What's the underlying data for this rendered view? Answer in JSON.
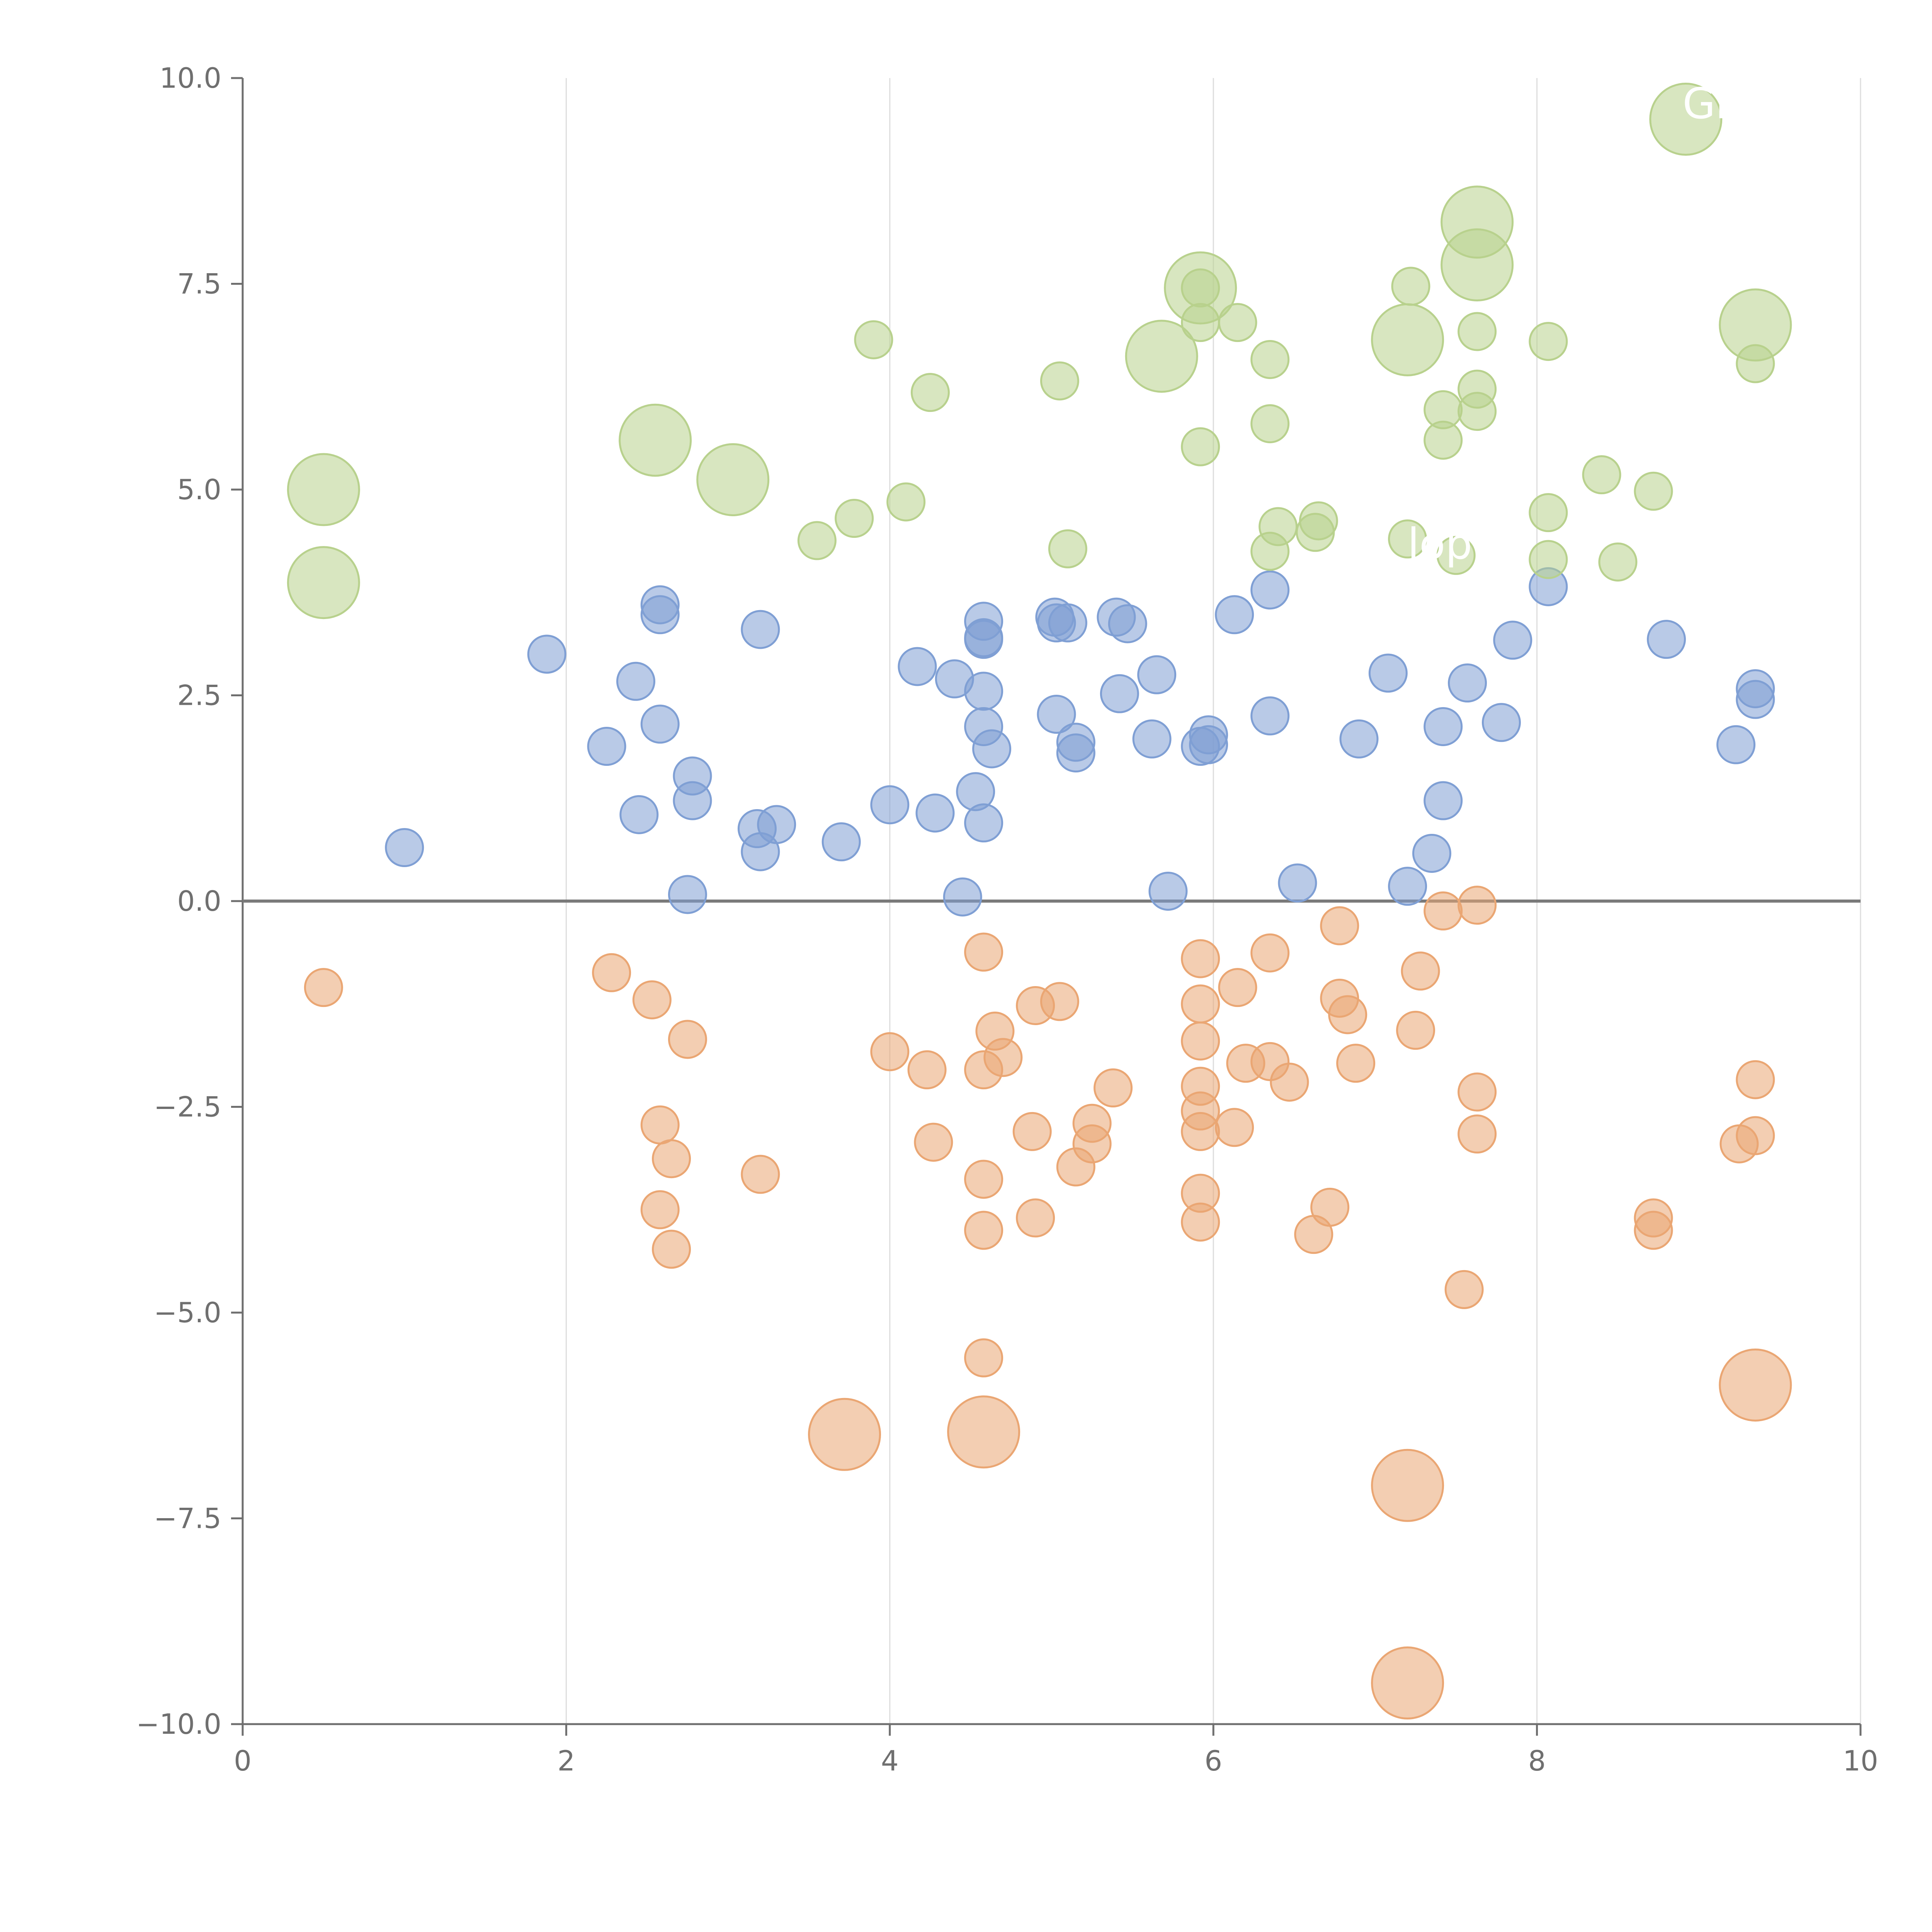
{
  "colors": {
    "blue": "#7f9fd4",
    "orange": "#eaa673",
    "green": "#b8d18d",
    "axis": "#6f6f6f",
    "grid": "#dddddd"
  },
  "chart_data": {
    "type": "scatter",
    "title": "",
    "xlabel": "",
    "ylabel": "",
    "xlim": [
      0,
      10
    ],
    "ylim": [
      -10,
      10
    ],
    "grid": "vertical",
    "x_ticks": [
      0,
      2,
      4,
      6,
      8,
      10
    ],
    "x_tick_labels": [
      "0",
      "2",
      "4",
      "6",
      "8",
      "10"
    ],
    "y_ticks": [
      10,
      7.5,
      5,
      2.5,
      0,
      -2.5,
      -5,
      -7.5,
      -10
    ],
    "y_tick_labels": [
      "10.0",
      "7.5",
      "5.0",
      "2.5",
      "0.0",
      "−2.5",
      "−5.0",
      "−7.5",
      "−10.0"
    ],
    "annotations": [
      {
        "text": "Gr",
        "x": 8.9,
        "y": 9.7
      },
      {
        "text": "lop",
        "x": 7.2,
        "y": 4.35
      }
    ],
    "series": [
      {
        "name": "blue",
        "color_key": "blue",
        "size": 1,
        "points": [
          [
            1.0,
            0.65
          ],
          [
            1.88,
            3.0
          ],
          [
            2.25,
            1.88
          ],
          [
            2.43,
            2.67
          ],
          [
            2.45,
            1.05
          ],
          [
            2.58,
            3.6
          ],
          [
            2.58,
            3.48
          ],
          [
            2.58,
            2.15
          ],
          [
            2.78,
            1.52
          ],
          [
            2.78,
            1.22
          ],
          [
            2.75,
            0.08
          ],
          [
            3.2,
            3.3
          ],
          [
            3.18,
            0.88
          ],
          [
            3.2,
            0.6
          ],
          [
            3.3,
            0.93
          ],
          [
            3.7,
            0.72
          ],
          [
            4.0,
            1.17
          ],
          [
            4.17,
            2.85
          ],
          [
            4.28,
            1.07
          ],
          [
            4.4,
            2.7
          ],
          [
            4.45,
            0.05
          ],
          [
            4.53,
            1.33
          ],
          [
            4.58,
            3.4
          ],
          [
            4.58,
            3.2
          ],
          [
            4.58,
            3.18
          ],
          [
            4.58,
            2.55
          ],
          [
            4.58,
            2.12
          ],
          [
            4.58,
            0.95
          ],
          [
            4.63,
            1.85
          ],
          [
            5.02,
            3.45
          ],
          [
            5.03,
            3.38
          ],
          [
            5.1,
            3.38
          ],
          [
            5.03,
            2.27
          ],
          [
            5.15,
            1.93
          ],
          [
            5.15,
            1.8
          ],
          [
            5.4,
            3.45
          ],
          [
            5.47,
            3.37
          ],
          [
            5.42,
            2.52
          ],
          [
            5.65,
            2.75
          ],
          [
            5.62,
            1.97
          ],
          [
            5.72,
            0.12
          ],
          [
            5.92,
            1.88
          ],
          [
            5.97,
            2.02
          ],
          [
            5.97,
            1.9
          ],
          [
            6.13,
            3.48
          ],
          [
            6.35,
            3.78
          ],
          [
            6.35,
            2.25
          ],
          [
            6.52,
            0.22
          ],
          [
            6.9,
            1.97
          ],
          [
            7.08,
            2.77
          ],
          [
            7.2,
            0.18
          ],
          [
            7.35,
            0.58
          ],
          [
            7.42,
            2.12
          ],
          [
            7.42,
            1.22
          ],
          [
            7.57,
            2.65
          ],
          [
            7.78,
            2.17
          ],
          [
            7.85,
            3.17
          ],
          [
            8.07,
            3.82
          ],
          [
            8.8,
            3.18
          ],
          [
            9.23,
            1.9
          ],
          [
            9.35,
            2.58
          ],
          [
            9.35,
            2.45
          ]
        ]
      },
      {
        "name": "orange",
        "color_key": "orange",
        "size": 1,
        "points": [
          [
            0.5,
            -1.05
          ],
          [
            2.28,
            -0.87
          ],
          [
            2.53,
            -1.2
          ],
          [
            2.75,
            -1.68
          ],
          [
            2.58,
            -2.72
          ],
          [
            2.65,
            -3.13
          ],
          [
            2.58,
            -3.75
          ],
          [
            2.65,
            -4.23
          ],
          [
            3.2,
            -3.32
          ],
          [
            4.0,
            -1.83
          ],
          [
            4.23,
            -2.05
          ],
          [
            4.27,
            -2.93
          ],
          [
            4.58,
            -0.62
          ],
          [
            4.65,
            -1.58
          ],
          [
            4.7,
            -1.9
          ],
          [
            4.58,
            -2.05
          ],
          [
            4.58,
            -3.38
          ],
          [
            4.58,
            -4.0
          ],
          [
            4.58,
            -5.55
          ],
          [
            4.9,
            -1.27
          ],
          [
            5.05,
            -1.22
          ],
          [
            4.88,
            -2.8
          ],
          [
            4.9,
            -3.85
          ],
          [
            5.25,
            -2.7
          ],
          [
            5.25,
            -2.95
          ],
          [
            5.15,
            -3.23
          ],
          [
            5.38,
            -2.27
          ],
          [
            5.92,
            -0.7
          ],
          [
            5.92,
            -1.25
          ],
          [
            5.92,
            -1.7
          ],
          [
            5.92,
            -2.25
          ],
          [
            5.92,
            -2.55
          ],
          [
            5.92,
            -2.8
          ],
          [
            5.92,
            -3.55
          ],
          [
            5.92,
            -3.9
          ],
          [
            6.15,
            -1.05
          ],
          [
            6.2,
            -1.97
          ],
          [
            6.13,
            -2.75
          ],
          [
            6.35,
            -0.63
          ],
          [
            6.35,
            -1.95
          ],
          [
            6.47,
            -2.2
          ],
          [
            6.78,
            -0.3
          ],
          [
            6.78,
            -1.18
          ],
          [
            6.83,
            -1.38
          ],
          [
            6.88,
            -1.97
          ],
          [
            6.72,
            -3.72
          ],
          [
            6.62,
            -4.05
          ],
          [
            7.28,
            -0.85
          ],
          [
            7.25,
            -1.57
          ],
          [
            7.42,
            -0.12
          ],
          [
            7.63,
            -0.05
          ],
          [
            7.63,
            -2.32
          ],
          [
            7.63,
            -2.83
          ],
          [
            7.55,
            -4.72
          ],
          [
            8.72,
            -3.85
          ],
          [
            8.72,
            -4.0
          ],
          [
            9.35,
            -2.17
          ],
          [
            9.35,
            -2.85
          ],
          [
            9.25,
            -2.95
          ]
        ]
      },
      {
        "name": "green",
        "color_key": "green",
        "size": 1,
        "points": [
          [
            3.55,
            4.38
          ],
          [
            3.78,
            4.65
          ],
          [
            3.9,
            6.82
          ],
          [
            4.1,
            4.85
          ],
          [
            4.25,
            6.18
          ],
          [
            5.05,
            6.32
          ],
          [
            5.1,
            4.28
          ],
          [
            5.92,
            7.45
          ],
          [
            5.92,
            7.03
          ],
          [
            5.92,
            5.52
          ],
          [
            6.15,
            7.03
          ],
          [
            6.35,
            6.58
          ],
          [
            6.35,
            5.8
          ],
          [
            6.35,
            4.25
          ],
          [
            6.4,
            4.55
          ],
          [
            6.63,
            4.48
          ],
          [
            6.65,
            4.62
          ],
          [
            7.22,
            7.47
          ],
          [
            7.42,
            5.97
          ],
          [
            7.42,
            5.6
          ],
          [
            7.5,
            4.2
          ],
          [
            7.63,
            6.92
          ],
          [
            7.63,
            6.22
          ],
          [
            7.63,
            5.95
          ],
          [
            8.07,
            6.8
          ],
          [
            8.07,
            4.72
          ],
          [
            8.07,
            4.15
          ],
          [
            8.4,
            5.18
          ],
          [
            8.5,
            4.12
          ],
          [
            8.72,
            4.98
          ],
          [
            9.35,
            6.53
          ],
          [
            7.2,
            4.4
          ]
        ]
      },
      {
        "name": "green-large",
        "color_key": "green",
        "size": 2,
        "points": [
          [
            0.5,
            5.0
          ],
          [
            0.5,
            3.87
          ],
          [
            2.55,
            5.6
          ],
          [
            3.03,
            5.12
          ],
          [
            5.68,
            6.62
          ],
          [
            5.92,
            7.45
          ],
          [
            7.2,
            6.82
          ],
          [
            7.63,
            8.25
          ],
          [
            7.63,
            7.73
          ],
          [
            8.92,
            9.5
          ],
          [
            9.35,
            7.0
          ]
        ]
      },
      {
        "name": "orange-large",
        "color_key": "orange",
        "size": 2,
        "points": [
          [
            3.72,
            -6.48
          ],
          [
            4.58,
            -6.45
          ],
          [
            7.2,
            -7.1
          ],
          [
            7.2,
            -9.5
          ],
          [
            9.35,
            -5.88
          ]
        ]
      }
    ]
  }
}
